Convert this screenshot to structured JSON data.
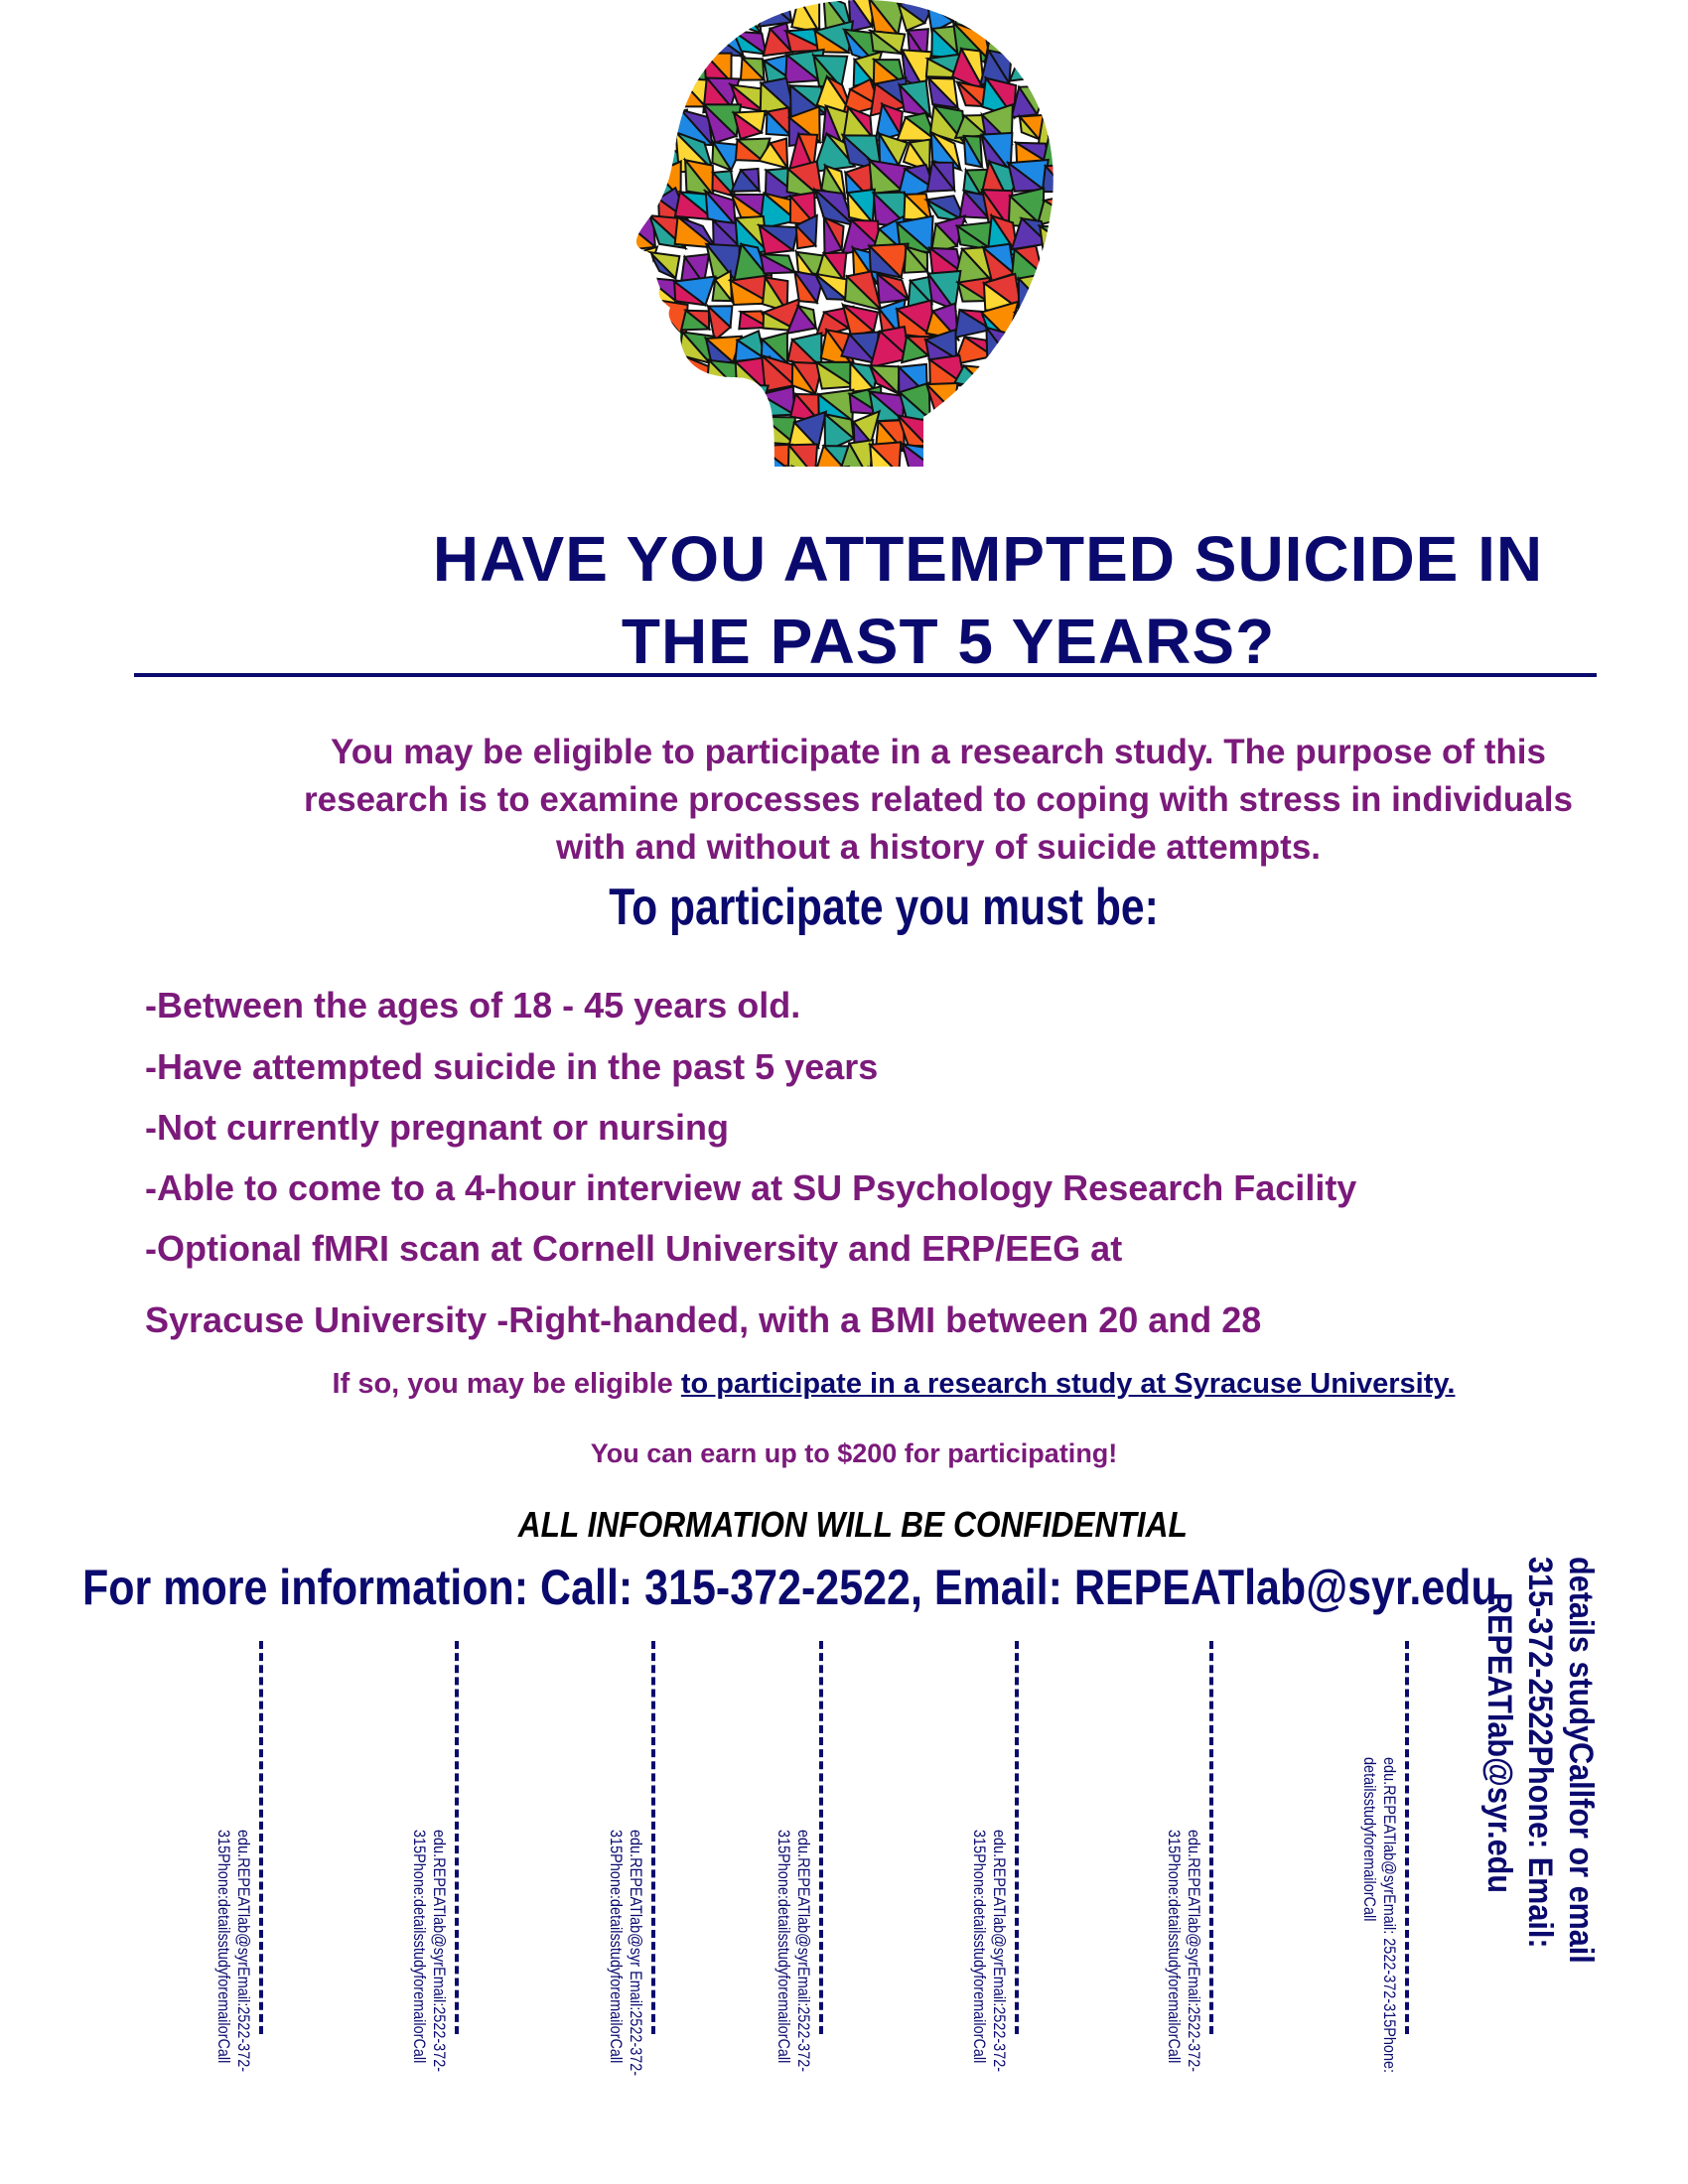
{
  "headline": {
    "line1": "HAVE YOU ATTEMPTED SUICIDE IN",
    "line2": "THE PAST 5 YEARS?"
  },
  "intro": "You may be eligible to participate in a research study. The purpose of this research is to examine processes related to coping with stress in individuals with and without a history of suicide attempts.",
  "requirements_heading": "To participate you must be:",
  "requirements": [
    "-Between the ages of 18 - 45 years old.",
    "-Have attempted suicide in the past 5 years",
    "-Not currently pregnant or nursing",
    "-Able to come to a 4-hour interview at SU Psychology Research Facility",
    "-Optional fMRI scan at Cornell University and ERP/EEG at",
    "Syracuse University -Right-handed, with a BMI between 20 and 28"
  ],
  "eligible": {
    "prefix": "If so, you may be eligible ",
    "link": "to participate in a research study at Syracuse University."
  },
  "earn": "You can earn up to $200 for participating!",
  "confidential": "ALL INFORMATION WILL BE CONFIDENTIAL",
  "more_info": "For more information: Call: 315-372-2522, Email: REPEATlab@syr.edu",
  "tabs": [
    {
      "line1": "edu.REPEATlab@syrEmail:2522-372-",
      "line2": "315Phone:detailsstudyforemailorCall"
    },
    {
      "line1": "edu.REPEATlab@syrEmail:2522-372-",
      "line2": "315Phone:detailsstudyforemailorCall"
    },
    {
      "line1": "edu.REPEATlab@syr Email:2522-372-",
      "line2": "315Phone:detailsstudyforemailorCall"
    },
    {
      "line1": "edu.REPEATlab@syrEmail:2522-372-",
      "line2": "315Phone:detailsstudyforemailorCall"
    },
    {
      "line1": "edu.REPEATlab@syrEmail:2522-372-",
      "line2": "315Phone:detailsstudyforemailorCall"
    },
    {
      "line1": "edu.REPEATlab@syrEmail:2522-372-",
      "line2": "315Phone:detailsstudyforemailorCall"
    },
    {
      "line1": "edu.REPEATlab@syrEmail:  2522-372-315Phone:",
      "line2": "detailsstudyforemailorCall"
    }
  ],
  "side_text": {
    "line1": "details  studyCallfor or email",
    "line2": "315-372-2522Phone: Email:",
    "line3": "REPEATlab@syr.edu"
  },
  "colors": {
    "navy": "#0a0a6e",
    "purple": "#7b1a7b"
  },
  "image": "mosaic-head-icon"
}
